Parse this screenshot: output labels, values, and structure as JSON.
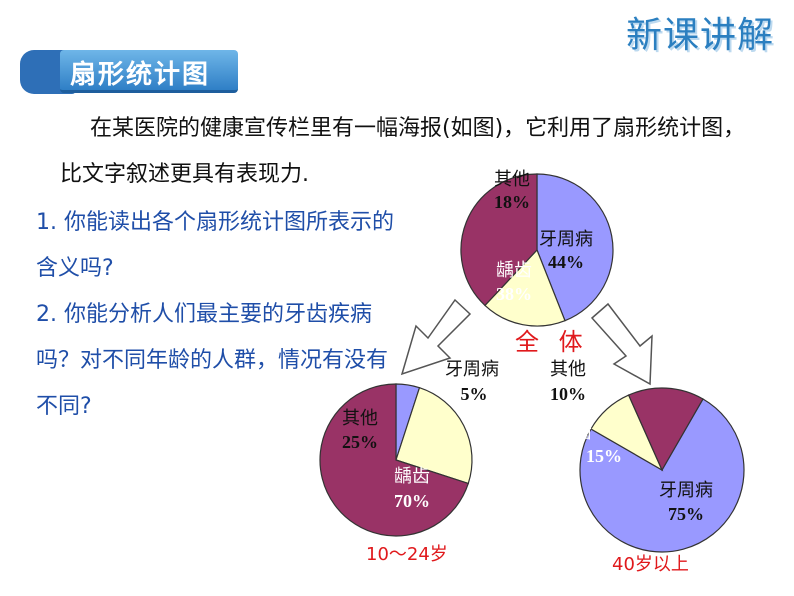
{
  "header": {
    "corner_title": "新课讲解",
    "section_title": "扇形统计图"
  },
  "intro_text": "在某医院的健康宣传栏里有一幅海报(如图)，它利用了扇形统计图，比文字叙述更具有表现力.",
  "questions": [
    "1. 你能读出各个扇形统计图所表示的含义吗?",
    "2. 你能分析人们最主要的牙齿疾病吗？对不同年龄的人群，情况有没有不同?"
  ],
  "colors": {
    "periodontal": "#9999ff",
    "caries": "#993366",
    "other": "#ffffcc",
    "accent": "#2b7fc0",
    "caption": "#e0191c"
  },
  "chart_data": [
    {
      "type": "pie",
      "name": "全 体",
      "categories": [
        "牙周病",
        "其他",
        "龋齿"
      ],
      "values": [
        44,
        18,
        38
      ],
      "labels": [
        "44%",
        "18%",
        "38%"
      ]
    },
    {
      "type": "pie",
      "name": "10～24岁",
      "categories": [
        "牙周病",
        "其他",
        "龋齿"
      ],
      "values": [
        5,
        25,
        70
      ],
      "labels": [
        "5%",
        "25%",
        "70%"
      ]
    },
    {
      "type": "pie",
      "name": "40岁以上",
      "categories": [
        "牙周病",
        "其他",
        "龋齿"
      ],
      "values": [
        75,
        10,
        15
      ],
      "labels": [
        "75%",
        "10%",
        "15%"
      ]
    }
  ]
}
